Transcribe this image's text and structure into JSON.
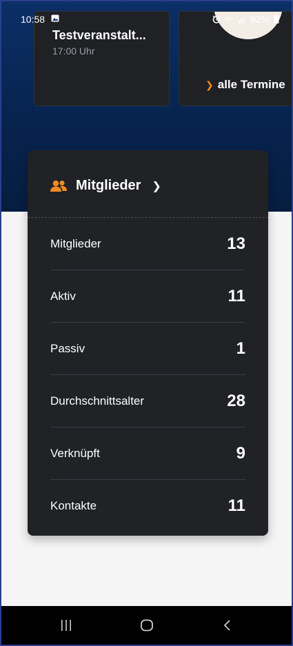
{
  "status_bar": {
    "time": "10:58",
    "network": "4G+",
    "battery": "92%",
    "icons": [
      "gallery-icon",
      "alarm-icon",
      "signal-icon",
      "battery-icon"
    ]
  },
  "events": {
    "title": "Testveranstalt...",
    "time": "17:00 Uhr",
    "all_link": "alle Termine"
  },
  "members": {
    "header": "Mitglieder",
    "rows": [
      {
        "label": "Mitglieder",
        "value": "13"
      },
      {
        "label": "Aktiv",
        "value": "11"
      },
      {
        "label": "Passiv",
        "value": "1"
      },
      {
        "label": "Durchschnittsalter",
        "value": "28"
      },
      {
        "label": "Verknüpft",
        "value": "9"
      },
      {
        "label": "Kontakte",
        "value": "11"
      }
    ]
  },
  "colors": {
    "accent": "#f08a24",
    "hero": "#07244f",
    "card": "#202226"
  }
}
